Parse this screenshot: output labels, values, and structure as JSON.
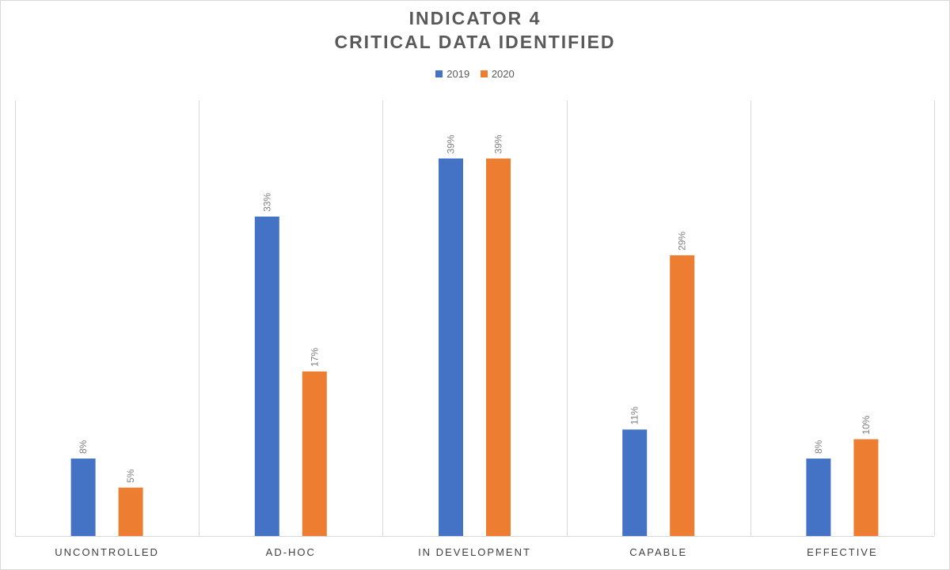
{
  "chart_data": {
    "type": "bar",
    "title_line1": "INDICATOR 4",
    "title_line2": "CRITICAL DATA IDENTIFIED",
    "categories": [
      "UNCONTROLLED",
      "AD-HOC",
      "IN DEVELOPMENT",
      "CAPABLE",
      "EFFECTIVE"
    ],
    "series": [
      {
        "name": "2019",
        "color": "#4472c4",
        "values": [
          8,
          33,
          39,
          11,
          8
        ],
        "labels": [
          "8%",
          "33%",
          "39%",
          "11%",
          "8%"
        ]
      },
      {
        "name": "2020",
        "color": "#ed7d31",
        "values": [
          5,
          17,
          39,
          29,
          10
        ],
        "labels": [
          "5%",
          "17%",
          "39%",
          "29%",
          "10%"
        ]
      }
    ],
    "ylim": [
      0,
      45
    ],
    "legend_position": "top-center",
    "grid": "vertical category separators"
  }
}
